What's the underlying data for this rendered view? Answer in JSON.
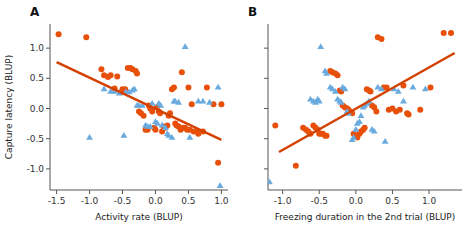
{
  "chart_data": [
    {
      "type": "scatter",
      "title": "A",
      "x_label": "Activity rate (BLUP)",
      "y_label": "Capture latency (BLUP)",
      "xlim": [
        -1.6,
        1.1
      ],
      "ylim": [
        -1.35,
        1.4
      ],
      "xticks": [
        -1.5,
        {
          "value": -1,
          "label": "-1.0"
        },
        -0.5,
        {
          "value": 0,
          "label": "0.0"
        },
        0.5,
        {
          "value": 1,
          "label": "1.0"
        }
      ],
      "yticks": [
        {
          "value": -1,
          "label": "-1.0"
        },
        -0.5,
        {
          "value": 0,
          "label": "0.0"
        },
        0.5,
        {
          "value": 1,
          "label": "1.0"
        }
      ],
      "series": [
        {
          "type": "scatter",
          "marker": "circle",
          "color": "#e8500a",
          "x": [
            -1.47,
            -1.05,
            -0.82,
            -0.78,
            -0.72,
            -0.68,
            -0.62,
            -0.58,
            -0.52,
            -0.5,
            -0.46,
            -0.42,
            -0.38,
            -0.35,
            -0.3,
            -0.28,
            -0.25,
            -0.22,
            -0.18,
            -0.15,
            -0.12,
            -0.1,
            -0.08,
            -0.05,
            -0.02,
            0.0,
            0.02,
            0.05,
            0.07,
            0.1,
            0.12,
            0.15,
            0.18,
            0.2,
            0.22,
            0.25,
            0.28,
            0.3,
            0.32,
            0.35,
            0.38,
            0.4,
            0.42,
            0.45,
            0.48,
            0.5,
            0.52,
            0.55,
            0.58,
            0.62,
            0.65,
            0.72,
            0.78,
            0.88,
            0.95,
            1.0
          ],
          "values": [
            1.23,
            1.18,
            0.65,
            0.55,
            0.52,
            0.55,
            0.33,
            0.53,
            0.27,
            0.32,
            0.32,
            0.67,
            0.67,
            0.65,
            0.62,
            0.58,
            -0.05,
            -0.08,
            -0.12,
            -0.35,
            -0.35,
            0.05,
            0.0,
            -0.05,
            -0.32,
            -0.35,
            0.02,
            -0.05,
            -0.08,
            -0.38,
            -0.3,
            -0.32,
            -0.28,
            -0.12,
            -0.08,
            0.32,
            0.35,
            -0.25,
            -0.28,
            -0.3,
            -0.35,
            0.6,
            -0.32,
            -0.32,
            -0.35,
            0.35,
            -0.35,
            0.07,
            -0.38,
            -0.38,
            -0.42,
            -0.38,
            0.35,
            0.07,
            -0.9,
            0.07
          ]
        },
        {
          "type": "scatter",
          "marker": "triangle",
          "color": "#6aabdf",
          "x": [
            -1.0,
            -0.78,
            -0.68,
            -0.62,
            -0.55,
            -0.48,
            -0.45,
            -0.4,
            -0.35,
            -0.32,
            -0.28,
            -0.25,
            -0.2,
            -0.15,
            -0.12,
            -0.08,
            -0.05,
            0.0,
            0.03,
            0.05,
            0.08,
            0.1,
            0.15,
            0.18,
            0.2,
            0.25,
            0.28,
            0.3,
            0.35,
            0.45,
            0.52,
            0.65,
            0.72,
            0.82,
            0.95,
            0.98
          ],
          "values": [
            -0.48,
            0.32,
            0.28,
            0.28,
            0.25,
            -0.45,
            0.27,
            0.27,
            0.3,
            0.32,
            0.05,
            0.05,
            0.05,
            -0.28,
            -0.3,
            -0.3,
            0.08,
            -0.22,
            -0.25,
            0.08,
            0.05,
            -0.28,
            -0.32,
            -0.42,
            -0.45,
            -0.48,
            0.12,
            0.12,
            0.1,
            1.02,
            -0.48,
            0.12,
            0.12,
            0.1,
            0.35,
            -1.28
          ]
        },
        {
          "type": "line",
          "color": "#d44000",
          "x": [
            -1.5,
            1.0
          ],
          "values": [
            0.77,
            -0.52
          ]
        }
      ]
    },
    {
      "type": "scatter",
      "title": "B",
      "x_label": "Freezing duration in the 2nd trial (BLUP)",
      "tick_labels": "x",
      "xlim": [
        -1.2,
        1.45
      ],
      "ylim": [
        -1.35,
        1.4
      ],
      "xticks": [
        {
          "value": -1,
          "label": "-1.0"
        },
        -0.5,
        {
          "value": 0,
          "label": "0.0"
        },
        0.5,
        {
          "value": 1,
          "label": "1.0"
        }
      ],
      "yticks": [
        -1,
        -0.5,
        0,
        0.5,
        1
      ],
      "series": [
        {
          "type": "scatter",
          "marker": "circle",
          "color": "#e8500a",
          "x": [
            -1.1,
            -0.82,
            -0.72,
            -0.68,
            -0.65,
            -0.62,
            -0.58,
            -0.55,
            -0.52,
            -0.5,
            -0.48,
            -0.45,
            -0.42,
            -0.4,
            -0.35,
            -0.32,
            -0.28,
            -0.25,
            -0.22,
            -0.2,
            -0.18,
            -0.15,
            -0.12,
            -0.1,
            -0.08,
            -0.05,
            -0.03,
            0.0,
            0.02,
            0.05,
            0.07,
            0.1,
            0.12,
            0.15,
            0.18,
            0.2,
            0.22,
            0.25,
            0.28,
            0.3,
            0.35,
            0.38,
            0.42,
            0.45,
            0.5,
            0.55,
            0.6,
            0.65,
            0.7,
            0.72,
            0.88,
            1.02,
            1.2,
            1.3
          ],
          "values": [
            -0.28,
            -0.95,
            -0.32,
            -0.35,
            -0.38,
            -0.42,
            -0.28,
            -0.32,
            -0.35,
            -0.42,
            -0.42,
            -0.42,
            -0.45,
            -0.45,
            0.62,
            0.6,
            0.58,
            0.55,
            0.3,
            0.28,
            0.05,
            0.02,
            0.0,
            -0.02,
            -0.05,
            -0.08,
            -0.42,
            -0.45,
            -0.48,
            -0.42,
            -0.38,
            -0.35,
            -0.32,
            0.32,
            0.3,
            0.28,
            0.05,
            0.02,
            -0.05,
            1.18,
            1.15,
            0.35,
            0.35,
            -0.02,
            0.0,
            -0.05,
            -0.02,
            0.38,
            -0.08,
            -0.1,
            -0.02,
            0.35,
            1.25,
            1.25
          ]
        },
        {
          "type": "scatter",
          "marker": "triangle",
          "color": "#6aabdf",
          "x": [
            -1.18,
            -0.62,
            -0.58,
            -0.55,
            -0.52,
            -0.5,
            -0.48,
            -0.42,
            -0.4,
            -0.35,
            -0.32,
            -0.28,
            -0.25,
            -0.22,
            -0.2,
            -0.18,
            -0.15,
            -0.12,
            -0.1,
            -0.05,
            -0.03,
            0.0,
            0.02,
            0.05,
            0.07,
            0.1,
            0.12,
            0.15,
            0.18,
            0.22,
            0.25,
            0.3,
            0.35,
            0.4,
            0.52,
            0.58,
            0.65,
            0.78,
            0.95
          ],
          "values": [
            -1.22,
            0.15,
            0.12,
            0.1,
            0.15,
            0.12,
            1.02,
            0.62,
            0.58,
            0.35,
            0.32,
            0.28,
            0.15,
            0.12,
            0.1,
            0.35,
            0.32,
            -0.05,
            -0.08,
            -0.52,
            -0.48,
            -0.35,
            -0.25,
            -0.22,
            -0.12,
            0.02,
            0.05,
            0.08,
            0.12,
            -0.35,
            -0.38,
            0.35,
            0.32,
            -0.55,
            0.32,
            0.28,
            0.12,
            0.35,
            0.32
          ]
        },
        {
          "type": "line",
          "color": "#d44000",
          "x": [
            -1.05,
            1.35
          ],
          "values": [
            -0.72,
            0.92
          ]
        }
      ]
    }
  ]
}
